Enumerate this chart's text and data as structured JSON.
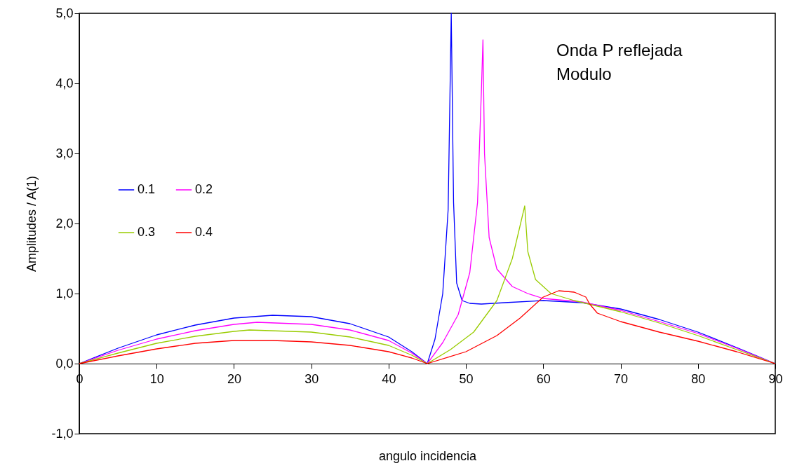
{
  "chart_data": {
    "type": "line",
    "xlabel": "angulo incidencia",
    "ylabel": "Amplitudes / A(1)",
    "annotations": [
      "Onda P reflejada",
      "Modulo"
    ],
    "xlim": [
      0,
      90
    ],
    "xticks": [
      0,
      10,
      20,
      30,
      40,
      50,
      60,
      70,
      80,
      90
    ],
    "ylim": [
      -1,
      5
    ],
    "yticks": [
      {
        "value": -1,
        "label": "-1,0"
      },
      {
        "value": 0,
        "label": "0,0"
      },
      {
        "value": 1,
        "label": "1,0"
      },
      {
        "value": 2,
        "label": "2,0"
      },
      {
        "value": 3,
        "label": "3,0"
      },
      {
        "value": 4,
        "label": "4,0"
      },
      {
        "value": 5,
        "label": "5,0"
      }
    ],
    "grid": false,
    "legend": "left",
    "marker": "none",
    "line_style": "solid",
    "series": [
      {
        "name": "0.1",
        "color": "#0000ff",
        "x": [
          0,
          5,
          10,
          15,
          20,
          25,
          30,
          35,
          40,
          43,
          45,
          46,
          47,
          47.7,
          48.1,
          48.4,
          48.8,
          49.5,
          50.5,
          52,
          55,
          60,
          65,
          70,
          75,
          80,
          85,
          90
        ],
        "values": [
          0,
          0.22,
          0.41,
          0.55,
          0.65,
          0.69,
          0.67,
          0.57,
          0.38,
          0.17,
          0,
          0.35,
          1.0,
          2.2,
          5.0,
          2.3,
          1.15,
          0.9,
          0.86,
          0.85,
          0.87,
          0.9,
          0.87,
          0.78,
          0.63,
          0.45,
          0.23,
          0
        ]
      },
      {
        "name": "0.2",
        "color": "#ff00ff",
        "x": [
          0,
          5,
          10,
          15,
          20,
          23,
          30,
          35,
          40,
          43,
          45,
          47,
          49,
          50.5,
          51.5,
          52,
          52.2,
          52.4,
          53,
          54,
          56,
          58,
          60,
          65,
          70,
          75,
          80,
          85,
          90
        ],
        "values": [
          0,
          0.19,
          0.35,
          0.47,
          0.56,
          0.59,
          0.56,
          0.48,
          0.33,
          0.15,
          0,
          0.3,
          0.7,
          1.3,
          2.3,
          3.9,
          4.62,
          3.0,
          1.8,
          1.35,
          1.1,
          1.0,
          0.93,
          0.88,
          0.76,
          0.6,
          0.43,
          0.22,
          0
        ]
      },
      {
        "name": "0.3",
        "color": "#99cc00",
        "x": [
          0,
          5,
          10,
          15,
          20,
          22,
          30,
          35,
          40,
          43,
          45,
          48,
          51,
          54,
          56,
          57.6,
          58,
          59,
          61,
          64,
          70,
          75,
          80,
          85,
          90
        ],
        "values": [
          0,
          0.15,
          0.29,
          0.39,
          0.46,
          0.48,
          0.45,
          0.38,
          0.26,
          0.12,
          0,
          0.2,
          0.45,
          0.9,
          1.5,
          2.25,
          1.6,
          1.2,
          1.0,
          0.9,
          0.74,
          0.58,
          0.4,
          0.2,
          0
        ]
      },
      {
        "name": "0.4",
        "color": "#ff0000",
        "x": [
          0,
          5,
          10,
          15,
          20,
          25,
          30,
          35,
          40,
          43,
          45,
          50,
          54,
          57,
          60,
          62,
          64,
          65.5,
          66,
          67,
          70,
          75,
          80,
          85,
          90
        ],
        "values": [
          0,
          0.11,
          0.21,
          0.29,
          0.33,
          0.33,
          0.31,
          0.26,
          0.17,
          0.08,
          0,
          0.17,
          0.4,
          0.65,
          0.95,
          1.04,
          1.02,
          0.95,
          0.85,
          0.72,
          0.6,
          0.45,
          0.32,
          0.17,
          0
        ]
      }
    ]
  }
}
